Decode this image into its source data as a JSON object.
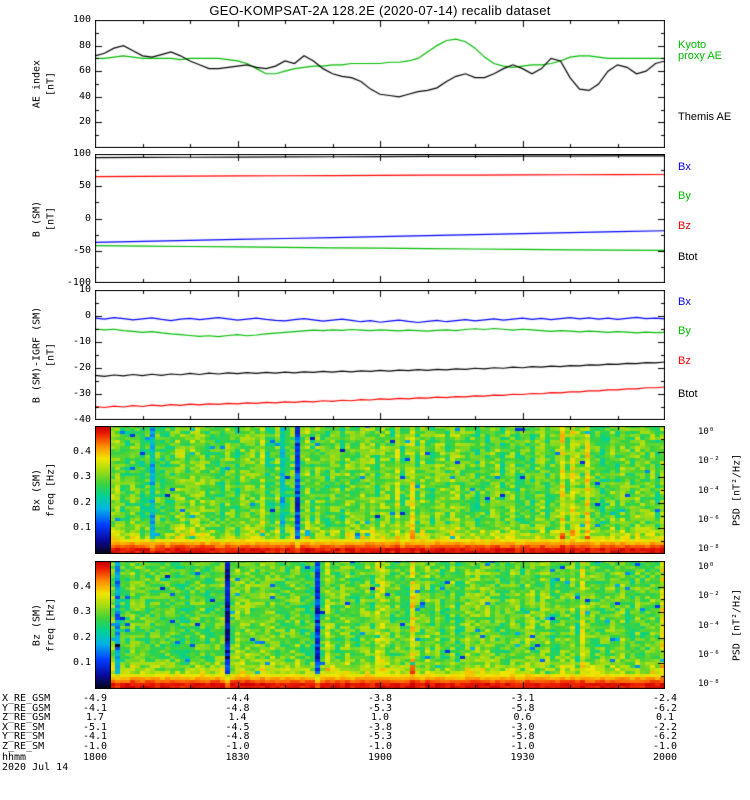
{
  "title": "GEO-KOMPSAT-2A 128.2E (2020-07-14) recalib dataset",
  "time_axis": {
    "span_minutes": 120,
    "major_step": 30,
    "minor_step": 10,
    "tick_labels": [
      "1800",
      "1830",
      "1900",
      "1930",
      "2000"
    ]
  },
  "spec_params": {
    "cols": 114,
    "rows": 43,
    "fmax": 0.5,
    "low_band_log10": -0.3,
    "mid_log10": -3.4,
    "noise_amp": 1.5,
    "streak_prob": 0.08
  },
  "chart_data": [
    {
      "id": "ae_index",
      "type": "line",
      "ylabel_lines": [
        "AE index",
        "[nT]"
      ],
      "ylim": [
        0,
        100
      ],
      "ymajor": 20,
      "yminor": 10,
      "yticks": [
        20,
        40,
        60,
        80,
        100
      ],
      "xlabel": "",
      "x_range_minutes": [
        0,
        120
      ],
      "series": [
        {
          "name": "Kyoto proxy AE",
          "color": "#00bb00",
          "values": [
            70,
            70,
            71,
            72,
            71,
            70,
            70,
            70,
            70,
            69,
            70,
            70,
            70,
            70,
            69,
            68,
            66,
            62,
            58,
            58,
            60,
            62,
            63,
            64,
            64,
            65,
            65,
            66,
            66,
            66,
            66,
            67,
            67,
            68,
            70,
            75,
            80,
            84,
            85,
            83,
            78,
            71,
            66,
            64,
            63,
            64,
            65,
            65,
            66,
            68,
            71,
            72,
            72,
            71,
            70,
            70,
            70,
            70,
            70,
            70,
            70
          ]
        },
        {
          "name": "Themis AE",
          "color": "#000000",
          "values": [
            72,
            74,
            78,
            80,
            76,
            72,
            71,
            73,
            75,
            72,
            68,
            65,
            62,
            62,
            63,
            64,
            65,
            63,
            62,
            64,
            68,
            66,
            72,
            68,
            62,
            58,
            56,
            55,
            52,
            46,
            42,
            41,
            40,
            42,
            44,
            45,
            47,
            52,
            56,
            58,
            55,
            55,
            58,
            62,
            65,
            62,
            58,
            62,
            70,
            68,
            55,
            46,
            45,
            50,
            60,
            65,
            63,
            58,
            60,
            66,
            68
          ]
        }
      ],
      "right_labels": [
        {
          "series_index": 0,
          "y_frac": 0.16,
          "wrap": true
        },
        {
          "series_index": 1,
          "y_frac": 0.72
        }
      ]
    },
    {
      "id": "b_sm",
      "type": "line",
      "ylabel_lines": [
        "B (SM)",
        "[nT]"
      ],
      "ylim": [
        -100,
        100
      ],
      "ymajor": 50,
      "yminor": 25,
      "yticks": [
        -100,
        -50,
        0,
        50,
        100
      ],
      "series": [
        {
          "name": "Bx",
          "color": "#0000ff",
          "values": [
            -37,
            -35.5,
            -34,
            -32.5,
            -31,
            -29.5,
            -28,
            -26.5,
            -25,
            -23.5,
            -22,
            -20.5,
            -19
          ]
        },
        {
          "name": "By",
          "color": "#00bb00",
          "values": [
            -42,
            -42.7,
            -43.4,
            -44,
            -44.7,
            -45.4,
            -46,
            -46.7,
            -47.3,
            -48,
            -48.5,
            -49,
            -49.5
          ]
        },
        {
          "name": "Bz",
          "color": "#ff0000",
          "values": [
            65,
            65.3,
            65.6,
            66,
            66.3,
            66.6,
            66.9,
            67.1,
            67.4,
            67.6,
            67.8,
            68,
            68.2
          ]
        },
        {
          "name": "Btot",
          "color": "#000000",
          "values": [
            94.5,
            94.8,
            95,
            95.2,
            95.5,
            95.7,
            96,
            96.2,
            96.4,
            96.6,
            96.8,
            97,
            97.2
          ]
        }
      ],
      "right_labels": [
        {
          "series_index": 0,
          "y_frac": 0.06
        },
        {
          "series_index": 1,
          "y_frac": 0.29
        },
        {
          "series_index": 2,
          "y_frac": 0.52
        },
        {
          "series_index": 3,
          "y_frac": 0.76
        }
      ]
    },
    {
      "id": "b_sm_minus_igrf",
      "type": "line",
      "ylabel_lines": [
        "B (SM)-IGRF (SM)",
        "[nT]"
      ],
      "ylim": [
        -40,
        10
      ],
      "ymajor": 10,
      "yminor": 5,
      "yticks": [
        -40,
        -30,
        -20,
        -10,
        0,
        10
      ],
      "series": [
        {
          "name": "Bx",
          "color": "#0000ff",
          "values": [
            -0.8,
            -1.2,
            -0.6,
            -1.0,
            -1.5,
            -1.1,
            -0.7,
            -1.3,
            -1.8,
            -1.2,
            -0.9,
            -1.4,
            -1.0,
            -0.6,
            -1.1,
            -1.6,
            -1.2,
            -0.8,
            -1.3,
            -1.7,
            -1.9,
            -1.4,
            -1.0,
            -1.5,
            -2.0,
            -1.6,
            -1.2,
            -1.7,
            -2.2,
            -1.8,
            -2.4,
            -2.0,
            -1.6,
            -2.1,
            -2.5,
            -2.1,
            -1.7,
            -2.2,
            -1.8,
            -1.4,
            -1.9,
            -1.5,
            -1.1,
            -1.6,
            -1.2,
            -0.8,
            -1.3,
            -0.9,
            -1.4,
            -1.0,
            -0.6,
            -1.1,
            -0.7,
            -1.2,
            -0.8,
            -1.3,
            -0.9,
            -0.5,
            -1.0,
            -0.8,
            -1.1
          ]
        },
        {
          "name": "By",
          "color": "#00bb00",
          "values": [
            -5.0,
            -5.3,
            -5.1,
            -5.6,
            -5.9,
            -6.3,
            -6.0,
            -6.5,
            -6.9,
            -7.2,
            -7.5,
            -7.8,
            -7.6,
            -7.9,
            -7.5,
            -7.2,
            -7.6,
            -7.3,
            -6.9,
            -6.6,
            -6.3,
            -6.0,
            -5.7,
            -5.4,
            -5.6,
            -5.3,
            -5.5,
            -5.2,
            -5.4,
            -5.6,
            -5.3,
            -5.5,
            -5.7,
            -5.4,
            -5.6,
            -5.8,
            -5.5,
            -5.3,
            -5.6,
            -5.2,
            -4.9,
            -5.2,
            -4.8,
            -5.1,
            -5.4,
            -5.1,
            -5.3,
            -5.6,
            -5.9,
            -5.6,
            -5.8,
            -6.1,
            -5.8,
            -6.0,
            -6.3,
            -6.0,
            -6.2,
            -6.5,
            -6.2,
            -6.4,
            -6.3
          ]
        },
        {
          "name": "Bz",
          "color": "#ff0000",
          "values": [
            -34.8,
            -35.2,
            -34.7,
            -35.0,
            -34.5,
            -34.8,
            -34.3,
            -34.6,
            -34.1,
            -34.4,
            -33.9,
            -34.2,
            -33.8,
            -34.0,
            -33.6,
            -33.8,
            -33.4,
            -33.6,
            -33.2,
            -33.4,
            -33.0,
            -33.2,
            -32.8,
            -33.0,
            -32.6,
            -32.8,
            -32.4,
            -32.6,
            -32.2,
            -32.3,
            -31.9,
            -32.1,
            -31.7,
            -31.9,
            -31.5,
            -31.6,
            -31.2,
            -31.4,
            -31.0,
            -31.1,
            -30.7,
            -30.8,
            -30.4,
            -30.5,
            -30.1,
            -30.2,
            -29.8,
            -29.9,
            -29.5,
            -29.6,
            -29.2,
            -29.2,
            -28.8,
            -28.8,
            -28.4,
            -28.4,
            -28.0,
            -28.0,
            -27.6,
            -27.6,
            -27.3
          ]
        },
        {
          "name": "Btot",
          "color": "#000000",
          "values": [
            -22.8,
            -23.2,
            -22.7,
            -23.0,
            -22.5,
            -22.9,
            -22.4,
            -22.8,
            -22.3,
            -22.6,
            -22.1,
            -22.5,
            -22.0,
            -22.3,
            -21.9,
            -22.2,
            -21.8,
            -22.1,
            -21.7,
            -22.0,
            -21.6,
            -21.9,
            -21.5,
            -21.7,
            -21.3,
            -21.6,
            -21.2,
            -21.5,
            -21.1,
            -21.3,
            -20.9,
            -21.2,
            -20.8,
            -21.0,
            -20.6,
            -20.9,
            -20.5,
            -20.7,
            -20.3,
            -20.5,
            -20.1,
            -20.3,
            -19.9,
            -20.1,
            -19.7,
            -19.9,
            -19.5,
            -19.7,
            -19.3,
            -19.5,
            -19.1,
            -19.2,
            -18.8,
            -18.9,
            -18.5,
            -18.6,
            -18.2,
            -18.3,
            -17.9,
            -18.0,
            -17.7
          ]
        }
      ],
      "right_labels": [
        {
          "series_index": 0,
          "y_frac": 0.05
        },
        {
          "series_index": 1,
          "y_frac": 0.28
        },
        {
          "series_index": 2,
          "y_frac": 0.51
        },
        {
          "series_index": 3,
          "y_frac": 0.76
        }
      ]
    },
    {
      "id": "bx_spectrogram",
      "type": "heatmap",
      "ylabel_lines": [
        "Bx (SM)",
        "freq [Hz]"
      ],
      "ylim": [
        0,
        0.5
      ],
      "ymajor": 0.1,
      "yminor": 0.05,
      "yticks": [
        0.1,
        0.2,
        0.3,
        0.4
      ],
      "seed": 20200714,
      "colorbar": {
        "label": "PSD [nT²/Hz]",
        "ticks": [
          "10⁰",
          "10⁻²",
          "10⁻⁴",
          "10⁻⁶",
          "10⁻⁸"
        ],
        "log10_range": [
          -8,
          0
        ]
      }
    },
    {
      "id": "bz_spectrogram",
      "type": "heatmap",
      "ylabel_lines": [
        "Bz (SM)",
        "freq [Hz]"
      ],
      "ylim": [
        0,
        0.5
      ],
      "ymajor": 0.1,
      "yminor": 0.05,
      "yticks": [
        0.1,
        0.2,
        0.3,
        0.4
      ],
      "seed": 714714,
      "colorbar": {
        "label": "PSD [nT²/Hz]",
        "ticks": [
          "10⁰",
          "10⁻²",
          "10⁻⁴",
          "10⁻⁶",
          "10⁻⁸"
        ],
        "log10_range": [
          -8,
          0
        ]
      }
    }
  ],
  "ephemeris": {
    "rows": [
      {
        "label": "X_RE_GSM",
        "values": [
          "-4.9",
          "-4.4",
          "-3.8",
          "-3.1",
          "-2.4"
        ]
      },
      {
        "label": "Y_RE_GSM",
        "values": [
          "-4.1",
          "-4.8",
          "-5.3",
          "-5.8",
          "-6.2"
        ]
      },
      {
        "label": "Z_RE_GSM",
        "values": [
          "1.7",
          "1.4",
          "1.0",
          "0.6",
          "0.1"
        ]
      },
      {
        "label": "X_RE_SM",
        "values": [
          "-5.1",
          "-4.5",
          "-3.8",
          "-3.0",
          "-2.2"
        ]
      },
      {
        "label": "Y_RE_SM",
        "values": [
          "-4.1",
          "-4.8",
          "-5.3",
          "-5.8",
          "-6.2"
        ]
      },
      {
        "label": "Z_RE_SM",
        "values": [
          "-1.0",
          "-1.0",
          "-1.0",
          "-1.0",
          "-1.0"
        ]
      }
    ],
    "time_label": "hhmm",
    "date_label": "2020 Jul 14"
  }
}
